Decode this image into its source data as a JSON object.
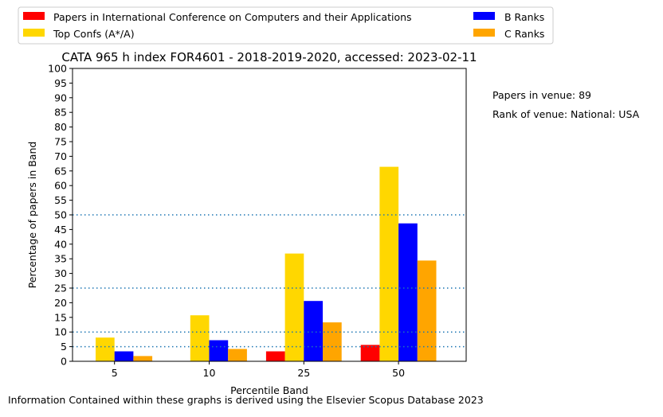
{
  "chart_data": {
    "type": "bar",
    "title": "CATA 965 h index FOR4601 - 2018-2019-2020, accessed: 2023-02-11",
    "xlabel": "Percentile Band",
    "ylabel": "Percentage of papers in Band",
    "categories": [
      "5",
      "10",
      "25",
      "50"
    ],
    "ylim": [
      0,
      100
    ],
    "yticks": [
      0,
      5,
      10,
      15,
      20,
      25,
      30,
      35,
      40,
      45,
      50,
      55,
      60,
      65,
      70,
      75,
      80,
      85,
      90,
      95,
      100
    ],
    "grid": false,
    "reference_lines": [
      5,
      10,
      25,
      50
    ],
    "legend_position": "top",
    "series": [
      {
        "name": "Papers in International Conference on Computers and their Applications",
        "color": "#ff0000",
        "values": [
          0,
          0,
          3.4,
          5.6
        ]
      },
      {
        "name": "Top Confs (A*/A)",
        "color": "#ffd700",
        "values": [
          8.1,
          15.7,
          36.8,
          66.4
        ]
      },
      {
        "name": "B Ranks",
        "color": "#0000ff",
        "values": [
          3.4,
          7.2,
          20.6,
          47.1
        ]
      },
      {
        "name": "C Ranks",
        "color": "#ffa500",
        "values": [
          1.8,
          4.2,
          13.3,
          34.4
        ]
      }
    ]
  },
  "notes": {
    "papers_in_venue": "Papers in venue: 89",
    "rank_of_venue": "Rank of venue: National: USA"
  },
  "footer": "Information Contained within these graphs is derived using the Elsevier Scopus Database 2023"
}
